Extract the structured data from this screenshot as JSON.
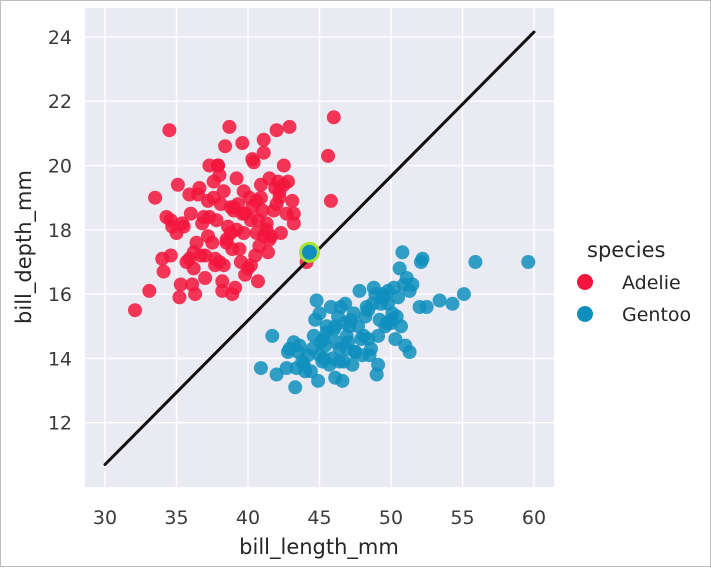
{
  "chart_data": {
    "type": "scatter",
    "xlabel": "bill_length_mm",
    "ylabel": "bill_depth_mm",
    "xlim": [
      28.6,
      61.4
    ],
    "ylim": [
      10.0,
      24.9
    ],
    "xticks": [
      30,
      35,
      40,
      45,
      50,
      55,
      60
    ],
    "yticks": [
      12,
      14,
      16,
      18,
      20,
      22,
      24
    ],
    "grid": true,
    "legend": {
      "title": "species",
      "placement": "right"
    },
    "colors": {
      "Adelie": "#f3153c",
      "Gentoo": "#0f8fbd",
      "line": "#111111",
      "highlight": "#a6e22e",
      "plot_bg": "#eaeaf2",
      "grid": "#ffffff"
    },
    "line": {
      "x": [
        30,
        60
      ],
      "y": [
        10.7,
        24.15
      ]
    },
    "highlight_point": {
      "x": 44.3,
      "y": 17.3
    },
    "series": [
      {
        "name": "Adelie",
        "x": [
          32.1,
          33.1,
          33.5,
          34.0,
          34.3,
          34.5,
          34.6,
          35.0,
          35.1,
          35.2,
          35.3,
          35.5,
          35.7,
          35.9,
          36.0,
          36.2,
          36.4,
          36.6,
          36.7,
          36.9,
          37.0,
          37.2,
          37.3,
          37.5,
          37.6,
          37.7,
          37.8,
          37.9,
          38.0,
          38.1,
          38.2,
          38.3,
          38.5,
          38.6,
          38.7,
          38.8,
          38.9,
          39.0,
          39.1,
          39.2,
          39.3,
          39.5,
          39.6,
          39.7,
          39.8,
          40.0,
          40.1,
          40.2,
          40.3,
          40.5,
          40.6,
          40.7,
          40.8,
          40.9,
          41.0,
          41.1,
          41.3,
          41.4,
          41.5,
          41.6,
          41.8,
          42.0,
          42.1,
          42.2,
          42.3,
          42.5,
          42.7,
          42.8,
          42.9,
          43.1,
          43.2,
          34.6,
          36.3,
          37.9,
          38.8,
          39.2,
          40.9,
          41.1,
          42.0,
          34.7,
          36.2,
          37.6,
          38.4,
          39.7,
          40.3,
          41.5,
          42.2,
          36.5,
          37.0,
          38.2,
          39.0,
          40.6,
          41.3,
          46.0,
          45.8,
          45.6,
          44.1,
          43.2,
          40.2,
          38.5,
          39.8,
          41.1,
          37.3,
          36.1,
          35.9,
          38.0,
          39.4,
          40.7,
          41.9,
          38.9,
          37.2,
          35.4,
          42.5,
          36.8,
          39.6,
          40.4,
          38.3,
          37.7,
          34.1
        ],
        "y": [
          15.5,
          16.1,
          19.0,
          17.1,
          18.4,
          21.1,
          17.2,
          17.9,
          19.4,
          15.9,
          16.3,
          18.1,
          17.0,
          19.1,
          18.5,
          16.8,
          17.6,
          19.3,
          17.2,
          18.4,
          16.5,
          18.9,
          20.0,
          17.6,
          19.5,
          16.9,
          18.3,
          20.0,
          17.0,
          18.8,
          16.1,
          19.2,
          17.7,
          18.1,
          21.2,
          17.9,
          17.4,
          18.6,
          16.2,
          19.6,
          18.8,
          17.0,
          20.7,
          17.9,
          18.5,
          16.8,
          19.0,
          18.3,
          20.2,
          17.2,
          18.9,
          16.4,
          17.5,
          19.4,
          18.6,
          20.8,
          18.2,
          17.3,
          19.6,
          17.8,
          18.6,
          21.1,
          19.5,
          19.0,
          17.9,
          20.0,
          18.5,
          19.5,
          21.2,
          18.9,
          18.2,
          18.3,
          16.0,
          20.0,
          18.7,
          18.0,
          19.0,
          20.4,
          18.8,
          18.1,
          17.3,
          19.0,
          20.6,
          19.2,
          18.7,
          17.7,
          19.2,
          19.1,
          17.2,
          16.4,
          18.7,
          17.9,
          18.0,
          21.5,
          18.9,
          20.3,
          17.0,
          18.5,
          16.9,
          17.6,
          16.6,
          17.8,
          18.4,
          16.3,
          17.1,
          19.7,
          17.4,
          18.3,
          19.3,
          16.0,
          17.8,
          18.2,
          19.4,
          18.2,
          18.5,
          20.1,
          16.9,
          17.1,
          16.7
        ]
      },
      {
        "name": "Gentoo",
        "x": [
          40.9,
          41.7,
          42.0,
          42.7,
          42.8,
          43.2,
          43.3,
          43.5,
          43.6,
          43.8,
          44.0,
          44.4,
          44.5,
          44.9,
          45.0,
          45.1,
          45.2,
          45.3,
          45.4,
          45.5,
          45.7,
          45.8,
          46.1,
          46.2,
          46.3,
          46.4,
          46.5,
          46.6,
          46.8,
          46.9,
          47.0,
          47.2,
          47.3,
          47.5,
          47.7,
          47.8,
          48.1,
          48.2,
          48.4,
          48.5,
          48.7,
          48.8,
          49.0,
          49.1,
          49.2,
          49.3,
          49.4,
          49.5,
          49.6,
          49.8,
          50.0,
          50.1,
          50.2,
          50.4,
          50.5,
          50.7,
          50.8,
          51.1,
          51.3,
          51.5,
          52.0,
          52.1,
          52.2,
          52.5,
          53.4,
          54.3,
          55.1,
          55.9,
          59.6,
          44.6,
          45.0,
          46.0,
          46.7,
          47.4,
          48.0,
          48.6,
          49.7,
          50.3,
          50.6,
          51.0,
          43.4,
          44.8,
          45.9,
          46.4,
          47.1,
          48.3,
          49.1,
          50.0,
          51.3,
          45.5,
          46.1,
          47.5,
          48.9,
          49.8,
          43.9,
          44.2,
          45.3,
          46.8,
          47.9,
          49.4,
          50.9,
          42.9,
          44.7,
          46.9,
          48.4
        ],
        "y": [
          13.7,
          14.7,
          13.5,
          13.7,
          14.2,
          14.5,
          13.1,
          14.2,
          14.4,
          13.9,
          13.6,
          13.6,
          14.3,
          13.3,
          15.4,
          14.5,
          13.9,
          14.6,
          14.4,
          15.0,
          13.8,
          15.6,
          13.4,
          14.5,
          15.3,
          14.3,
          15.6,
          13.3,
          15.1,
          14.7,
          14.5,
          15.2,
          13.8,
          14.2,
          15.0,
          16.1,
          14.7,
          15.3,
          14.6,
          14.1,
          15.7,
          16.2,
          13.5,
          14.7,
          15.2,
          15.7,
          16.0,
          15.9,
          15.0,
          16.1,
          15.2,
          15.4,
          16.2,
          15.3,
          15.9,
          15.0,
          17.3,
          16.5,
          14.2,
          16.3,
          15.6,
          17.0,
          17.1,
          15.6,
          15.8,
          15.7,
          16.0,
          17.0,
          17.0,
          14.7,
          14.1,
          14.9,
          13.9,
          15.4,
          14.1,
          14.3,
          15.1,
          14.6,
          16.8,
          14.4,
          13.7,
          15.8,
          14.0,
          13.9,
          15.0,
          15.6,
          13.8,
          15.1,
          16.1,
          14.8,
          15.0,
          14.2,
          16.0,
          15.7,
          13.8,
          14.1,
          14.0,
          15.7,
          14.6,
          15.9,
          16.3,
          14.3,
          15.2,
          14.3,
          15.5
        ]
      }
    ]
  }
}
